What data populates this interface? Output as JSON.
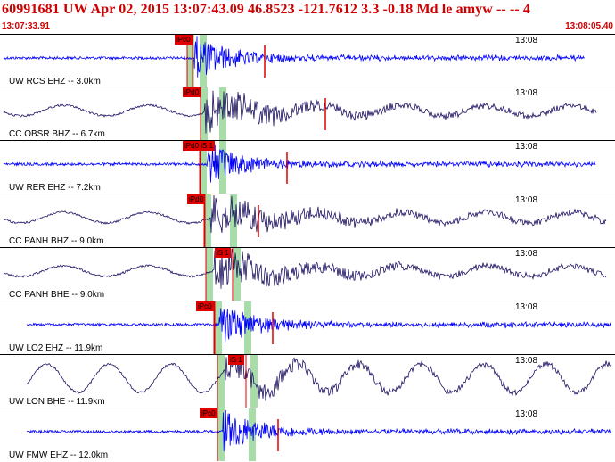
{
  "header": {
    "title": "60991681 UW Apr 02, 2015 13:07:43.09   46.8523 -121.7612  3.3 -0.18 Md le amyw -- --    4",
    "start_time": "13:07:33.91",
    "end_time": "13:08:05.40"
  },
  "colors": {
    "header": "#d00000",
    "blue": "#0000ff",
    "navy": "#1a1060",
    "pick": "#e00000",
    "window": "#a8dca8"
  },
  "traces": [
    {
      "label": "UW RCS EHZ -- 3.0km",
      "time": "13:08",
      "pick": "iPc0",
      "color": "blue"
    },
    {
      "label": "CC OBSR BHZ -- 6.7km",
      "time": "13:08",
      "pick": "iPd0",
      "color": "navy"
    },
    {
      "label": "UW RER EHZ -- 7.2km",
      "time": "13:08",
      "pick": "iPd0 iS 1",
      "color": "blue"
    },
    {
      "label": "CC PANH BHZ -- 9.0km",
      "time": "13:08",
      "pick": "iPd0",
      "color": "navy"
    },
    {
      "label": "CC PANH BHE -- 9.0km",
      "time": "13:08",
      "pick": "iS 1",
      "color": "navy"
    },
    {
      "label": "UW LO2 EHZ -- 11.9km",
      "time": "13:08",
      "pick": "iPc0",
      "color": "blue"
    },
    {
      "label": "UW LON BHE -- 11.9km",
      "time": "13:08",
      "pick": "iS 1",
      "color": "navy"
    },
    {
      "label": "UW FMW EHZ -- 12.0km",
      "time": "13:08",
      "pick": "iPc0",
      "color": "blue"
    }
  ]
}
